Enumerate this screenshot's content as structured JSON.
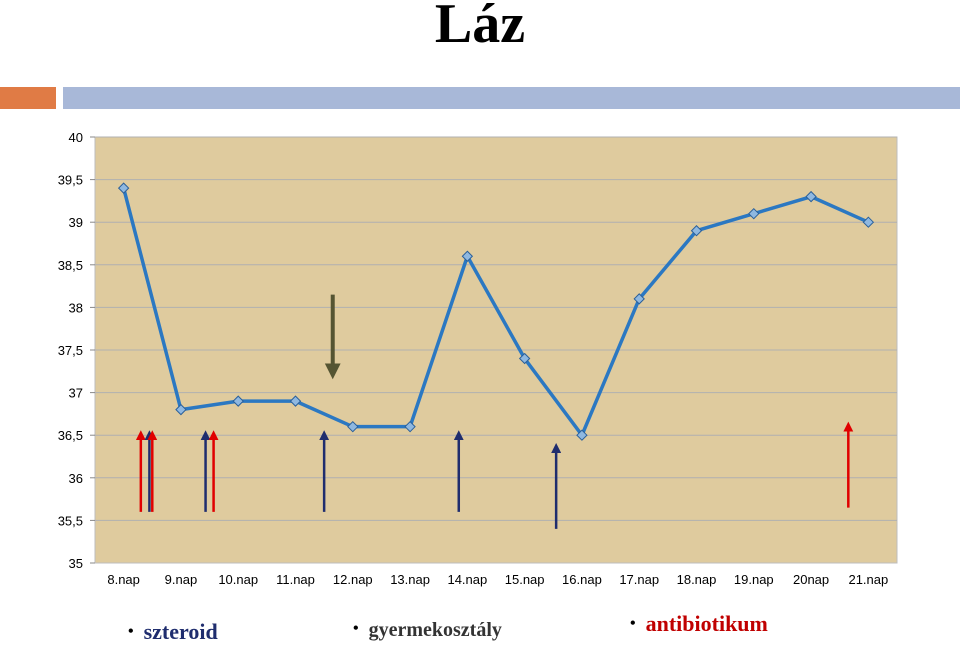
{
  "title": "Láz",
  "chart_data": {
    "type": "line",
    "categories": [
      "8.nap",
      "9.nap",
      "10.nap",
      "11.nap",
      "12.nap",
      "13.nap",
      "14.nap",
      "15.nap",
      "16.nap",
      "17.nap",
      "18.nap",
      "19.nap",
      "20nap",
      "21.nap"
    ],
    "series": [
      {
        "values": [
          39.4,
          36.8,
          36.9,
          36.9,
          36.6,
          36.6,
          38.6,
          37.4,
          36.5,
          38.1,
          38.9,
          39.1,
          39.3,
          39.0
        ]
      }
    ],
    "yticks": [
      "35",
      "35,5",
      "36",
      "36,5",
      "37",
      "37,5",
      "38",
      "38,5",
      "39",
      "39,5",
      "40"
    ],
    "ylim": [
      35,
      40
    ],
    "grid": true,
    "background": "#dfcb9e",
    "line_color": "#2b78c2",
    "marker_color": "#8fb8e0",
    "markers": [
      {
        "kind": "antibiotic",
        "color": "#e00000",
        "x": 0.8,
        "from": 35.6,
        "to": 36.5
      },
      {
        "kind": "steroid",
        "color": "#1f2d6e",
        "x": 0.95,
        "from": 35.6,
        "to": 36.5
      },
      {
        "kind": "antibiotic",
        "color": "#e00000",
        "x": 1.0,
        "from": 35.6,
        "to": 36.5
      },
      {
        "kind": "steroid",
        "color": "#1f2d6e",
        "x": 1.93,
        "from": 35.6,
        "to": 36.5
      },
      {
        "kind": "antibiotic",
        "color": "#e00000",
        "x": 2.07,
        "from": 35.6,
        "to": 36.5
      },
      {
        "kind": "steroid",
        "color": "#1f2d6e",
        "x": 4.0,
        "from": 35.6,
        "to": 36.5
      },
      {
        "kind": "steroid",
        "color": "#1f2d6e",
        "x": 6.35,
        "from": 35.6,
        "to": 36.5
      },
      {
        "kind": "steroid",
        "color": "#1f2d6e",
        "x": 8.05,
        "from": 35.4,
        "to": 36.35
      },
      {
        "kind": "antibiotic",
        "color": "#e00000",
        "x": 13.15,
        "from": 35.65,
        "to": 36.6
      },
      {
        "kind": "ward",
        "color": "#555533",
        "x": 4.15,
        "from": 38.15,
        "to": 37.25
      }
    ]
  },
  "legend": {
    "steroid": "szteroid",
    "ward": "gyermekosztály",
    "antibiotic": "antibiotikum"
  }
}
